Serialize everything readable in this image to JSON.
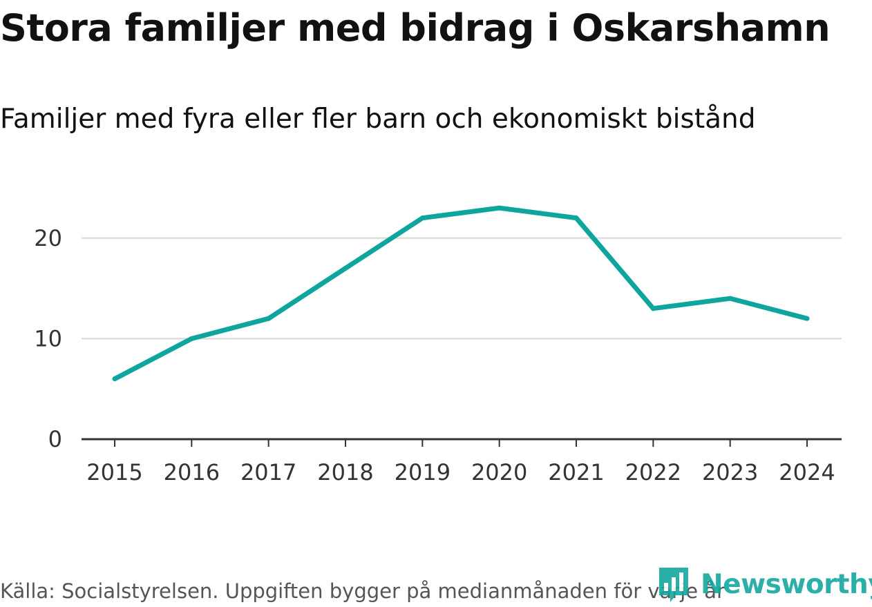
{
  "chart_data": {
    "type": "line",
    "title": "Stora familjer med bidrag i Oskarshamn",
    "subtitle": "Familjer med fyra eller fler barn och ekonomiskt bistånd",
    "xlabel": "",
    "ylabel": "",
    "categories": [
      "2015",
      "2016",
      "2017",
      "2018",
      "2019",
      "2020",
      "2021",
      "2022",
      "2023",
      "2024"
    ],
    "series": [
      {
        "values": [
          6,
          10,
          12,
          17,
          22,
          23,
          22,
          13,
          14,
          12
        ]
      }
    ],
    "ylim": [
      0,
      25
    ],
    "yticks": [
      0,
      10,
      20
    ],
    "grid": true,
    "legend": "none",
    "colors": {
      "line": "#0ea59e",
      "grid": "#dddddd",
      "axis": "#333333",
      "tick_label": "#333333"
    }
  },
  "footer": {
    "source": "Källa: Socialstyrelsen. Uppgiften bygger på medianmånaden för varje år",
    "logo_text": "Newsworthy",
    "logo_icon": "newsworthy-logo-icon",
    "logo_color": "#0ea59e"
  }
}
